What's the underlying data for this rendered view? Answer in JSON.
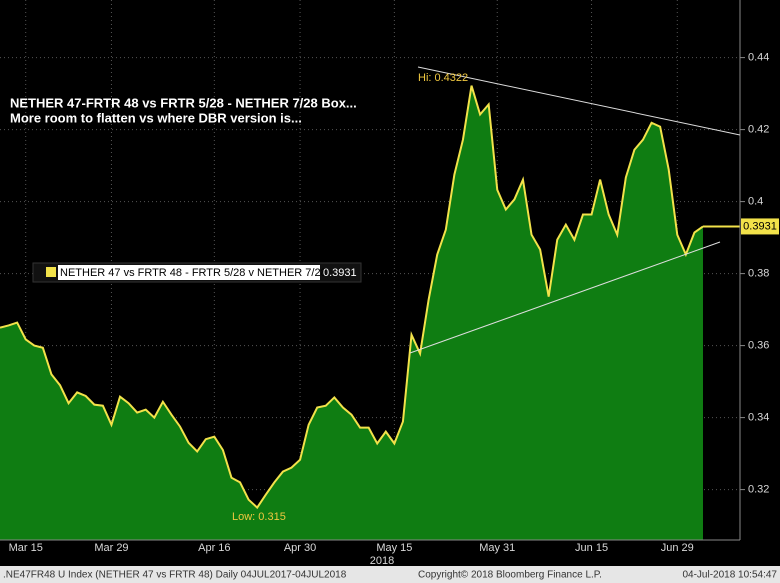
{
  "chart_data": {
    "type": "area",
    "title": "NETHER 47-FRTR 48 vs FRTR 5/28 - NETHER 7/28 Box...",
    "subtitle": "More room to flatten vs where DBR version is...",
    "categories": [
      null,
      null,
      null,
      "Mar 15",
      null,
      null,
      null,
      null,
      null,
      null,
      null,
      null,
      null,
      "Mar 29",
      null,
      null,
      null,
      null,
      null,
      null,
      null,
      null,
      null,
      null,
      null,
      "Apr 16",
      null,
      null,
      null,
      null,
      null,
      null,
      null,
      null,
      null,
      "Apr 30",
      null,
      null,
      null,
      null,
      null,
      null,
      null,
      null,
      null,
      null,
      "May 15",
      null,
      null,
      null,
      null,
      null,
      null,
      null,
      null,
      null,
      null,
      null,
      "May 31",
      null,
      null,
      null,
      null,
      null,
      null,
      null,
      null,
      null,
      null,
      "Jun 15",
      null,
      null,
      null,
      null,
      null,
      null,
      null,
      null,
      null,
      "Jun 29",
      null,
      null,
      null
    ],
    "year_label": "2018",
    "series": [
      {
        "name": "NETHER 47 vs FRTR 48 - FRTR 5/28 v NETHER 7/28",
        "color": "#f2e24a",
        "fill": "#0f7d12",
        "values": [
          0.365,
          0.3656,
          0.3664,
          0.3617,
          0.36,
          0.3594,
          0.352,
          0.349,
          0.344,
          0.347,
          0.346,
          0.3436,
          0.3433,
          0.338,
          0.3458,
          0.344,
          0.3414,
          0.3422,
          0.34,
          0.3444,
          0.3408,
          0.3375,
          0.333,
          0.3306,
          0.334,
          0.3347,
          0.331,
          0.3233,
          0.322,
          0.3172,
          0.315,
          0.3186,
          0.322,
          0.325,
          0.3261,
          0.3283,
          0.338,
          0.3428,
          0.3433,
          0.3456,
          0.3428,
          0.3408,
          0.3372,
          0.3372,
          0.3328,
          0.3361,
          0.3328,
          0.3389,
          0.363,
          0.3578,
          0.3728,
          0.3853,
          0.3922,
          0.4075,
          0.4172,
          0.4322,
          0.4242,
          0.427,
          0.4033,
          0.3978,
          0.4006,
          0.4061,
          0.3908,
          0.3867,
          0.3736,
          0.3894,
          0.3936,
          0.3894,
          0.3964,
          0.3964,
          0.4061,
          0.3964,
          0.3908,
          0.4067,
          0.4144,
          0.4172,
          0.4219,
          0.4208,
          0.4089,
          0.3908,
          0.3853,
          0.3914,
          0.3931
        ]
      }
    ],
    "annotations": {
      "high": "Hi: 0.4322",
      "low": "Low: 0.315"
    },
    "ylim": [
      0.306,
      0.456
    ],
    "yticks": [
      0.32,
      0.34,
      0.36,
      0.38,
      0.4,
      0.42,
      0.44
    ],
    "grid": true,
    "footer": {
      "left": ".NE47FR48 U Index (NETHER 47 vs FRTR 48)  Daily 04JUL2017-04JUL2018",
      "center": "Copyright© 2018 Bloomberg Finance L.P.",
      "right": "04-Jul-2018 10:54:47"
    }
  }
}
